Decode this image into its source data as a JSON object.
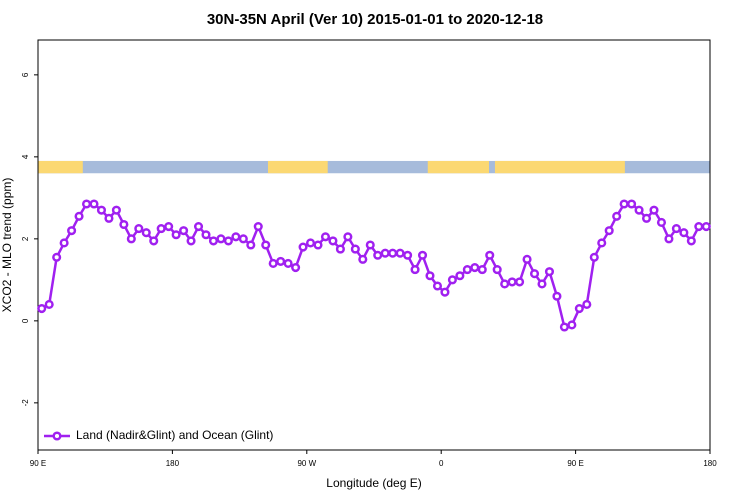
{
  "chart_data": {
    "type": "line",
    "title": "30N-35N April (Ver 10)   2015-01-01 to 2020-12-18",
    "x_label": "Longitude (deg E)",
    "y_label": "XCO2 - MLO trend (ppm)",
    "xlim": [
      90,
      540
    ],
    "xticks": [
      {
        "value": 90,
        "label": "90 E"
      },
      180,
      {
        "value": 270,
        "label": "90 W"
      },
      {
        "value": 360,
        "label": "0"
      },
      {
        "value": 450,
        "label": "90 E"
      },
      {
        "value": 540,
        "label": "180"
      }
    ],
    "ylim": [
      -3.15,
      6.85
    ],
    "yticks": [
      -2,
      0,
      2,
      4,
      6
    ],
    "legend": "bottom-left",
    "band": {
      "ylim": [
        3.6,
        3.9
      ],
      "ocean_color": "#a6bbdb",
      "land_color": "#fbd872",
      "land": [
        [
          90,
          120
        ],
        [
          244,
          284
        ],
        [
          351,
          392
        ],
        [
          396,
          483
        ]
      ]
    },
    "x": [
      92.5,
      97.5,
      102.5,
      107.5,
      112.5,
      117.5,
      122.5,
      127.5,
      132.5,
      137.5,
      142.5,
      147.5,
      152.5,
      157.5,
      162.5,
      167.5,
      172.5,
      177.5,
      182.5,
      187.5,
      192.5,
      197.5,
      202.5,
      207.5,
      212.5,
      217.5,
      222.5,
      227.5,
      232.5,
      237.5,
      242.5,
      247.5,
      252.5,
      257.5,
      262.5,
      267.5,
      272.5,
      277.5,
      282.5,
      287.5,
      292.5,
      297.5,
      302.5,
      307.5,
      312.5,
      317.5,
      322.5,
      327.5,
      332.5,
      337.5,
      342.5,
      347.5,
      352.5,
      357.5,
      362.5,
      367.5,
      372.5,
      377.5,
      382.5,
      387.5,
      392.5,
      397.5,
      402.5,
      407.5,
      412.5,
      417.5,
      422.5,
      427.5,
      432.5,
      437.5,
      442.5,
      447.5,
      452.5,
      457.5,
      462.5,
      467.5,
      472.5,
      477.5,
      482.5,
      487.5,
      492.5,
      497.5,
      502.5,
      507.5,
      512.5,
      517.5,
      522.5,
      527.5,
      532.5,
      537.5
    ],
    "series": [
      {
        "name": "Land (Nadir&Glint) and Ocean (Glint)",
        "color": "#a020f0",
        "values": [
          0.3,
          0.4,
          1.55,
          1.9,
          2.2,
          2.55,
          2.85,
          2.85,
          2.7,
          2.5,
          2.7,
          2.35,
          2.0,
          2.25,
          2.15,
          1.95,
          2.25,
          2.3,
          2.1,
          2.2,
          1.95,
          2.3,
          2.1,
          1.95,
          2.0,
          1.95,
          2.05,
          2.0,
          1.85,
          2.3,
          1.85,
          1.4,
          1.45,
          1.4,
          1.3,
          1.8,
          1.9,
          1.85,
          2.05,
          1.95,
          1.75,
          2.05,
          1.75,
          1.5,
          1.85,
          1.6,
          1.65,
          1.65,
          1.65,
          1.6,
          1.25,
          1.6,
          1.1,
          0.85,
          0.7,
          1.0,
          1.1,
          1.25,
          1.3,
          1.25,
          1.6,
          1.25,
          0.9,
          0.95,
          0.95,
          1.5,
          1.15,
          0.9,
          1.2,
          0.6,
          -0.15,
          -0.1,
          0.3,
          0.4,
          1.55,
          1.9,
          2.2,
          2.55,
          2.85,
          2.85,
          2.7,
          2.5,
          2.7,
          2.4,
          2.0,
          2.25,
          2.15,
          1.95,
          2.3,
          2.3
        ]
      }
    ]
  }
}
